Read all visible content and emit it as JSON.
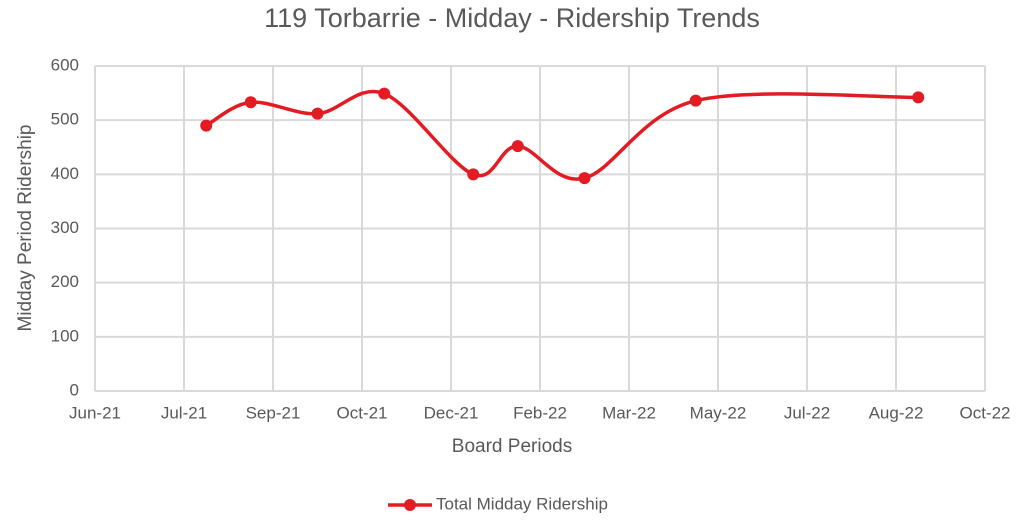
{
  "chart_data": {
    "type": "line",
    "title": "119 Torbarrie - Midday - Ridership Trends",
    "x_label": "Board Periods",
    "y_label": "Midday Period Ridership",
    "x": [
      "2021-07",
      "2021-08",
      "2021-09",
      "2021-10",
      "2021-12",
      "2022-01",
      "2022-02",
      "2022-04",
      "2022-08"
    ],
    "series": [
      {
        "name": "Total Midday Ridership",
        "color": "#e31b23",
        "values": [
          490,
          533,
          512,
          549,
          400,
          452,
          393,
          536,
          542
        ]
      }
    ],
    "xticks": [
      {
        "value": "2021-06",
        "label": "Jun-21"
      },
      {
        "value": "2021-07",
        "label": "Jul-21"
      },
      {
        "value": "2021-09",
        "label": "Sep-21"
      },
      {
        "value": "2021-10",
        "label": "Oct-21"
      },
      {
        "value": "2021-12",
        "label": "Dec-21"
      },
      {
        "value": "2022-02",
        "label": "Feb-22"
      },
      {
        "value": "2022-03",
        "label": "Mar-22"
      },
      {
        "value": "2022-05",
        "label": "May-22"
      },
      {
        "value": "2022-07",
        "label": "Jul-22"
      },
      {
        "value": "2022-08",
        "label": "Aug-22"
      },
      {
        "value": "2022-10",
        "label": "Oct-22"
      }
    ],
    "ylim": [
      0,
      600
    ],
    "yticks": [
      0,
      100,
      200,
      300,
      400,
      500,
      600
    ],
    "grid": true,
    "legend": "bottom"
  }
}
